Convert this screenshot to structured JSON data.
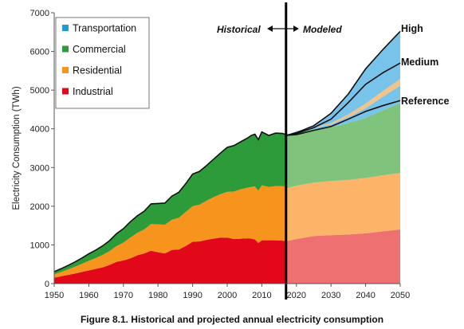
{
  "caption": "Figure 8.1. Historical and projected annual electricity consumption",
  "chart_data": {
    "type": "area",
    "ylabel": "Electricity Consumption (TWh)",
    "xlim": [
      1950,
      2050
    ],
    "ylim": [
      0,
      7000
    ],
    "x_ticks": [
      1950,
      1960,
      1970,
      1980,
      1990,
      2000,
      2010,
      2020,
      2030,
      2040,
      2050
    ],
    "y_ticks": [
      0,
      1000,
      2000,
      3000,
      4000,
      5000,
      6000,
      7000
    ],
    "divider_year": 2017,
    "annotations": {
      "historical": "Historical",
      "modeled": "Modeled"
    },
    "legend": {
      "placement": "top-left",
      "entries": [
        {
          "name": "Transportation",
          "color": "#1f9ad6"
        },
        {
          "name": "Commercial",
          "color": "#2e9b3a"
        },
        {
          "name": "Residential",
          "color": "#f7941d"
        },
        {
          "name": "Industrial",
          "color": "#e1081a"
        }
      ]
    },
    "colors": {
      "industrial_hist": "#e1081a",
      "residential_hist": "#f7941d",
      "commercial_hist": "#2e9b3a",
      "industrial_model": "#ee7070",
      "residential_model": "#fbb468",
      "commercial_model": "#7fc37c",
      "transportation_model": "#78c3ea",
      "scenario_sliver": "#f3c48a"
    },
    "historical": {
      "x": [
        1950,
        1952,
        1954,
        1956,
        1958,
        1960,
        1962,
        1964,
        1966,
        1968,
        1970,
        1972,
        1974,
        1976,
        1978,
        1980,
        1982,
        1984,
        1986,
        1988,
        1990,
        1992,
        1994,
        1996,
        1998,
        2000,
        2002,
        2004,
        2006,
        2007,
        2008,
        2009,
        2010,
        2012,
        2014,
        2016,
        2017
      ],
      "series": [
        {
          "name": "Industrial",
          "values": [
            150,
            190,
            225,
            260,
            300,
            340,
            380,
            420,
            480,
            560,
            600,
            650,
            730,
            780,
            850,
            810,
            780,
            870,
            880,
            970,
            1080,
            1090,
            1130,
            1160,
            1190,
            1190,
            1150,
            1160,
            1170,
            1160,
            1140,
            1050,
            1120,
            1120,
            1120,
            1110,
            1100
          ]
        },
        {
          "name": "Residential",
          "values": [
            90,
            110,
            140,
            175,
            210,
            250,
            280,
            320,
            360,
            410,
            460,
            540,
            580,
            620,
            690,
            720,
            740,
            780,
            820,
            880,
            920,
            950,
            1010,
            1070,
            1120,
            1180,
            1230,
            1280,
            1310,
            1340,
            1370,
            1350,
            1420,
            1380,
            1400,
            1410,
            1400
          ]
        },
        {
          "name": "Commercial",
          "values": [
            70,
            85,
            105,
            125,
            150,
            180,
            205,
            235,
            270,
            320,
            360,
            410,
            440,
            470,
            520,
            540,
            560,
            610,
            660,
            730,
            830,
            860,
            910,
            980,
            1060,
            1150,
            1190,
            1230,
            1290,
            1330,
            1350,
            1320,
            1380,
            1330,
            1370,
            1360,
            1350
          ]
        }
      ]
    },
    "modeled": {
      "x": [
        2017,
        2020,
        2025,
        2030,
        2035,
        2040,
        2045,
        2050
      ],
      "series": [
        {
          "name": "Industrial",
          "values": [
            1100,
            1150,
            1230,
            1250,
            1270,
            1300,
            1350,
            1400
          ]
        },
        {
          "name": "Residential",
          "values": [
            1360,
            1380,
            1380,
            1400,
            1410,
            1430,
            1450,
            1460
          ]
        },
        {
          "name": "Commercial",
          "values": [
            1370,
            1390,
            1380,
            1390,
            1470,
            1550,
            1680,
            1810
          ]
        },
        {
          "name": "Transportation",
          "values": [
            0,
            20,
            40,
            70,
            150,
            250,
            350,
            450
          ]
        }
      ],
      "scenarios": [
        {
          "name": "High",
          "values": [
            3830,
            3900,
            4080,
            4400,
            4900,
            5550,
            6050,
            6520
          ]
        },
        {
          "name": "Medium",
          "values": [
            3830,
            3880,
            4030,
            4250,
            4680,
            5150,
            5450,
            5700
          ]
        },
        {
          "name": "Reference",
          "values": [
            3830,
            3850,
            3960,
            4060,
            4250,
            4450,
            4600,
            4730
          ]
        }
      ]
    }
  }
}
